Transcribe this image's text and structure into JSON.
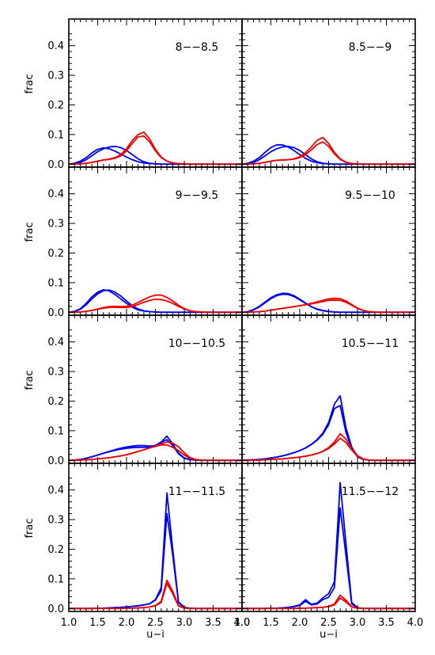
{
  "chart_data": {
    "type": "line",
    "layout": "4x2 small multiples",
    "xlabel": "u−i",
    "ylabel": "frac",
    "xlim": [
      1.0,
      4.0
    ],
    "ylim": [
      -0.01,
      0.49
    ],
    "xticks": [
      "1.0",
      "1.5",
      "2.0",
      "2.5",
      "3.0",
      "3.5",
      "4.0"
    ],
    "yticks": [
      "0.0",
      "0.1",
      "0.2",
      "0.3",
      "0.4"
    ],
    "series_colors": {
      "blue": "#0000ee",
      "red": "#ee0000"
    },
    "grid": false,
    "x": [
      1.0,
      1.1,
      1.2,
      1.3,
      1.4,
      1.5,
      1.6,
      1.7,
      1.8,
      1.9,
      2.0,
      2.1,
      2.2,
      2.3,
      2.4,
      2.5,
      2.6,
      2.7,
      2.8,
      2.9,
      3.0,
      3.1,
      3.2,
      3.3,
      3.4,
      3.5,
      3.6,
      3.7,
      3.8,
      3.9,
      4.0
    ],
    "panels": [
      {
        "label": "8−−8.5",
        "blue_a": [
          0,
          0.002,
          0.006,
          0.015,
          0.028,
          0.042,
          0.052,
          0.058,
          0.06,
          0.056,
          0.046,
          0.032,
          0.018,
          0.008,
          0.003,
          0.001,
          0,
          0,
          0,
          0,
          0,
          0,
          0,
          0,
          0,
          0,
          0,
          0,
          0,
          0,
          0
        ],
        "blue_b": [
          0,
          0.003,
          0.01,
          0.022,
          0.038,
          0.05,
          0.055,
          0.052,
          0.044,
          0.034,
          0.024,
          0.015,
          0.008,
          0.004,
          0.002,
          0.001,
          0,
          0,
          0,
          0,
          0,
          0,
          0,
          0,
          0,
          0,
          0,
          0,
          0,
          0,
          0
        ],
        "red_a": [
          0,
          0,
          0.001,
          0.003,
          0.006,
          0.01,
          0.014,
          0.016,
          0.02,
          0.028,
          0.045,
          0.07,
          0.092,
          0.095,
          0.075,
          0.045,
          0.022,
          0.01,
          0.004,
          0.002,
          0.001,
          0,
          0,
          0,
          0,
          0,
          0,
          0,
          0,
          0,
          0
        ],
        "red_b": [
          0,
          0,
          0.001,
          0.003,
          0.006,
          0.01,
          0.014,
          0.017,
          0.022,
          0.032,
          0.052,
          0.08,
          0.1,
          0.108,
          0.085,
          0.05,
          0.024,
          0.01,
          0.004,
          0.002,
          0.001,
          0,
          0,
          0,
          0,
          0,
          0,
          0,
          0,
          0,
          0
        ]
      },
      {
        "label": "8.5−−9",
        "blue_a": [
          0,
          0.002,
          0.006,
          0.015,
          0.028,
          0.042,
          0.052,
          0.058,
          0.06,
          0.056,
          0.046,
          0.032,
          0.018,
          0.008,
          0.003,
          0.001,
          0,
          0,
          0,
          0,
          0,
          0,
          0,
          0,
          0,
          0,
          0,
          0,
          0,
          0,
          0
        ],
        "blue_b": [
          0,
          0.003,
          0.01,
          0.022,
          0.04,
          0.056,
          0.065,
          0.065,
          0.058,
          0.046,
          0.032,
          0.02,
          0.01,
          0.005,
          0.002,
          0.001,
          0,
          0,
          0,
          0,
          0,
          0,
          0,
          0,
          0,
          0,
          0,
          0,
          0,
          0,
          0
        ],
        "red_a": [
          0,
          0,
          0.001,
          0.003,
          0.006,
          0.01,
          0.013,
          0.014,
          0.015,
          0.017,
          0.022,
          0.032,
          0.048,
          0.066,
          0.075,
          0.06,
          0.035,
          0.016,
          0.006,
          0.002,
          0.001,
          0,
          0,
          0,
          0,
          0,
          0,
          0,
          0,
          0,
          0
        ],
        "red_b": [
          0,
          0,
          0.001,
          0.003,
          0.006,
          0.01,
          0.013,
          0.014,
          0.015,
          0.018,
          0.025,
          0.038,
          0.058,
          0.08,
          0.09,
          0.07,
          0.04,
          0.018,
          0.007,
          0.002,
          0.001,
          0,
          0,
          0,
          0,
          0,
          0,
          0,
          0,
          0,
          0
        ]
      },
      {
        "label": "9−−9.5",
        "blue_a": [
          0,
          0.003,
          0.01,
          0.025,
          0.045,
          0.062,
          0.073,
          0.075,
          0.068,
          0.055,
          0.038,
          0.022,
          0.011,
          0.005,
          0.002,
          0.001,
          0,
          0,
          0,
          0,
          0,
          0,
          0,
          0,
          0,
          0,
          0,
          0,
          0,
          0,
          0
        ],
        "blue_b": [
          0,
          0.003,
          0.012,
          0.03,
          0.052,
          0.068,
          0.076,
          0.072,
          0.06,
          0.045,
          0.03,
          0.017,
          0.008,
          0.004,
          0.002,
          0.001,
          0,
          0,
          0,
          0,
          0,
          0,
          0,
          0,
          0,
          0,
          0,
          0,
          0,
          0,
          0
        ],
        "red_a": [
          0,
          0,
          0.001,
          0.003,
          0.006,
          0.01,
          0.014,
          0.016,
          0.017,
          0.016,
          0.016,
          0.019,
          0.026,
          0.034,
          0.04,
          0.044,
          0.043,
          0.038,
          0.03,
          0.02,
          0.011,
          0.005,
          0.002,
          0.001,
          0,
          0,
          0,
          0,
          0,
          0,
          0
        ],
        "red_b": [
          0,
          0,
          0.001,
          0.003,
          0.006,
          0.011,
          0.016,
          0.019,
          0.02,
          0.019,
          0.02,
          0.024,
          0.033,
          0.043,
          0.052,
          0.058,
          0.058,
          0.05,
          0.038,
          0.024,
          0.012,
          0.005,
          0.002,
          0.001,
          0,
          0,
          0,
          0,
          0,
          0,
          0
        ]
      },
      {
        "label": "9.5−−10",
        "blue_a": [
          0,
          0.002,
          0.008,
          0.018,
          0.032,
          0.046,
          0.056,
          0.061,
          0.06,
          0.053,
          0.042,
          0.03,
          0.019,
          0.011,
          0.006,
          0.003,
          0.001,
          0,
          0,
          0,
          0,
          0,
          0,
          0,
          0,
          0,
          0,
          0,
          0,
          0,
          0
        ],
        "blue_b": [
          0,
          0.002,
          0.009,
          0.02,
          0.035,
          0.049,
          0.059,
          0.064,
          0.063,
          0.056,
          0.044,
          0.031,
          0.019,
          0.01,
          0.005,
          0.002,
          0.001,
          0,
          0,
          0,
          0,
          0,
          0,
          0,
          0,
          0,
          0,
          0,
          0,
          0,
          0
        ],
        "red_a": [
          0,
          0,
          0.001,
          0.002,
          0.004,
          0.007,
          0.01,
          0.013,
          0.016,
          0.019,
          0.022,
          0.025,
          0.028,
          0.032,
          0.036,
          0.04,
          0.041,
          0.04,
          0.034,
          0.024,
          0.013,
          0.006,
          0.002,
          0.001,
          0,
          0,
          0,
          0,
          0,
          0,
          0
        ],
        "red_b": [
          0,
          0,
          0.001,
          0.002,
          0.004,
          0.007,
          0.01,
          0.013,
          0.016,
          0.019,
          0.022,
          0.026,
          0.03,
          0.035,
          0.04,
          0.045,
          0.047,
          0.046,
          0.038,
          0.026,
          0.014,
          0.006,
          0.002,
          0.001,
          0,
          0,
          0,
          0,
          0,
          0,
          0
        ]
      },
      {
        "label": "10−−10.5",
        "blue_a": [
          0,
          0.001,
          0.003,
          0.007,
          0.012,
          0.018,
          0.024,
          0.03,
          0.036,
          0.041,
          0.045,
          0.048,
          0.05,
          0.05,
          0.048,
          0.05,
          0.062,
          0.082,
          0.055,
          0.025,
          0.008,
          0.003,
          0.001,
          0,
          0,
          0,
          0,
          0,
          0,
          0,
          0
        ],
        "blue_b": [
          0,
          0.001,
          0.003,
          0.007,
          0.012,
          0.018,
          0.024,
          0.029,
          0.034,
          0.038,
          0.041,
          0.043,
          0.044,
          0.044,
          0.045,
          0.05,
          0.06,
          0.07,
          0.05,
          0.022,
          0.007,
          0.002,
          0.001,
          0,
          0,
          0,
          0,
          0,
          0,
          0,
          0
        ],
        "red_a": [
          0,
          0,
          0.001,
          0.002,
          0.003,
          0.005,
          0.007,
          0.009,
          0.012,
          0.015,
          0.019,
          0.024,
          0.03,
          0.036,
          0.042,
          0.047,
          0.052,
          0.052,
          0.044,
          0.033,
          0.018,
          0.007,
          0.002,
          0.001,
          0,
          0,
          0,
          0,
          0,
          0,
          0
        ],
        "red_b": [
          0,
          0,
          0.001,
          0.002,
          0.003,
          0.005,
          0.007,
          0.009,
          0.012,
          0.015,
          0.019,
          0.024,
          0.03,
          0.036,
          0.042,
          0.048,
          0.055,
          0.062,
          0.058,
          0.046,
          0.026,
          0.009,
          0.003,
          0.001,
          0,
          0,
          0,
          0,
          0,
          0,
          0
        ]
      },
      {
        "label": "10.5−−11",
        "blue_a": [
          0,
          0.001,
          0.002,
          0.003,
          0.005,
          0.008,
          0.011,
          0.015,
          0.02,
          0.026,
          0.033,
          0.042,
          0.053,
          0.068,
          0.088,
          0.12,
          0.175,
          0.185,
          0.095,
          0.04,
          0.012,
          0.003,
          0.001,
          0,
          0,
          0,
          0,
          0,
          0,
          0,
          0
        ],
        "blue_b": [
          0,
          0.001,
          0.002,
          0.003,
          0.005,
          0.008,
          0.011,
          0.015,
          0.02,
          0.026,
          0.033,
          0.042,
          0.054,
          0.07,
          0.092,
          0.128,
          0.19,
          0.218,
          0.11,
          0.045,
          0.014,
          0.004,
          0.001,
          0,
          0,
          0,
          0,
          0,
          0,
          0,
          0
        ],
        "red_a": [
          0,
          0,
          0,
          0.001,
          0.002,
          0.003,
          0.004,
          0.005,
          0.007,
          0.009,
          0.011,
          0.014,
          0.018,
          0.023,
          0.03,
          0.04,
          0.055,
          0.075,
          0.06,
          0.035,
          0.014,
          0.004,
          0.001,
          0,
          0,
          0,
          0,
          0,
          0,
          0,
          0
        ],
        "red_b": [
          0,
          0,
          0,
          0.001,
          0.002,
          0.003,
          0.004,
          0.005,
          0.007,
          0.009,
          0.011,
          0.014,
          0.018,
          0.023,
          0.031,
          0.043,
          0.062,
          0.09,
          0.072,
          0.04,
          0.016,
          0.005,
          0.001,
          0,
          0,
          0,
          0,
          0,
          0,
          0,
          0
        ]
      },
      {
        "label": "11−−11.5",
        "blue_a": [
          0,
          0,
          0,
          0,
          0,
          0.001,
          0.001,
          0.002,
          0.003,
          0.004,
          0.005,
          0.007,
          0.009,
          0.012,
          0.016,
          0.028,
          0.06,
          0.32,
          0.18,
          0.02,
          0.003,
          0.001,
          0,
          0,
          0,
          0,
          0,
          0,
          0,
          0,
          0
        ],
        "blue_b": [
          0,
          0,
          0,
          0,
          0,
          0.001,
          0.001,
          0.002,
          0.003,
          0.004,
          0.005,
          0.007,
          0.009,
          0.012,
          0.016,
          0.03,
          0.07,
          0.39,
          0.2,
          0.022,
          0.004,
          0.001,
          0,
          0,
          0,
          0,
          0,
          0,
          0,
          0,
          0
        ],
        "red_a": [
          0,
          0,
          0,
          0,
          0,
          0,
          0,
          0,
          0,
          0,
          0.001,
          0.001,
          0.002,
          0.003,
          0.005,
          0.009,
          0.02,
          0.085,
          0.05,
          0.008,
          0.001,
          0,
          0,
          0,
          0,
          0,
          0,
          0,
          0,
          0,
          0
        ],
        "red_b": [
          0,
          0,
          0,
          0,
          0,
          0,
          0,
          0,
          0,
          0,
          0.001,
          0.001,
          0.002,
          0.003,
          0.005,
          0.01,
          0.024,
          0.095,
          0.058,
          0.01,
          0.002,
          0,
          0,
          0,
          0,
          0,
          0,
          0,
          0,
          0,
          0
        ]
      },
      {
        "label": "11.5−−12",
        "blue_a": [
          0,
          0,
          0,
          0,
          0,
          0.001,
          0.001,
          0.002,
          0.003,
          0.006,
          0.01,
          0.024,
          0.012,
          0.015,
          0.03,
          0.038,
          0.07,
          0.34,
          0.18,
          0.015,
          0.002,
          0,
          0,
          0,
          0,
          0,
          0,
          0,
          0,
          0,
          0
        ],
        "blue_b": [
          0,
          0,
          0,
          0,
          0,
          0.001,
          0.001,
          0.002,
          0.004,
          0.007,
          0.012,
          0.03,
          0.014,
          0.018,
          0.036,
          0.05,
          0.09,
          0.425,
          0.22,
          0.02,
          0.003,
          0,
          0,
          0,
          0,
          0,
          0,
          0,
          0,
          0,
          0
        ],
        "red_a": [
          0,
          0,
          0,
          0,
          0,
          0,
          0,
          0,
          0,
          0,
          0.001,
          0.001,
          0.002,
          0.003,
          0.004,
          0.006,
          0.012,
          0.035,
          0.022,
          0.005,
          0.001,
          0,
          0,
          0,
          0,
          0,
          0,
          0,
          0,
          0,
          0
        ],
        "red_b": [
          0,
          0,
          0,
          0,
          0,
          0,
          0,
          0,
          0,
          0,
          0.001,
          0.001,
          0.002,
          0.003,
          0.004,
          0.007,
          0.015,
          0.045,
          0.028,
          0.006,
          0.001,
          0,
          0,
          0,
          0,
          0,
          0,
          0,
          0,
          0,
          0
        ]
      }
    ]
  }
}
